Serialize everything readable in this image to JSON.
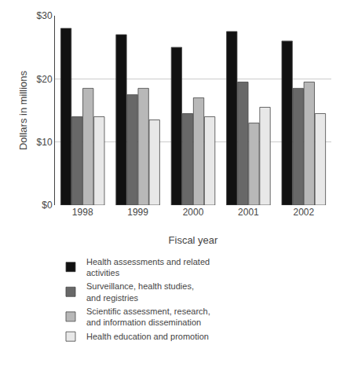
{
  "chart_data": {
    "type": "bar",
    "categories": [
      "1998",
      "1999",
      "2000",
      "2001",
      "2002"
    ],
    "series": [
      {
        "name": "Health assessments and related\nactivities",
        "color": "#111111",
        "values": [
          28.0,
          27.0,
          25.0,
          27.5,
          26.0
        ]
      },
      {
        "name": "Surveillance, health studies,\nand registries",
        "color": "#686868",
        "values": [
          14.0,
          17.5,
          14.5,
          19.5,
          18.5
        ]
      },
      {
        "name": "Scientific assessment, research,\nand information dissemination",
        "color": "#b8b8b8",
        "values": [
          18.5,
          18.5,
          17.0,
          13.0,
          19.5
        ]
      },
      {
        "name": "Health education and promotion",
        "color": "#e8e8e8",
        "values": [
          14.0,
          13.5,
          14.0,
          15.5,
          14.5
        ]
      }
    ],
    "xlabel": "Fiscal year",
    "ylabel": "Dollars in millions",
    "ylim": [
      0,
      30
    ],
    "yticks": [
      {
        "value": 0,
        "label": "$0"
      },
      {
        "value": 10,
        "label": "$10"
      },
      {
        "value": 20,
        "label": "$20"
      },
      {
        "value": 30,
        "label": "$30"
      }
    ],
    "grid": true,
    "legend": "bottom"
  }
}
